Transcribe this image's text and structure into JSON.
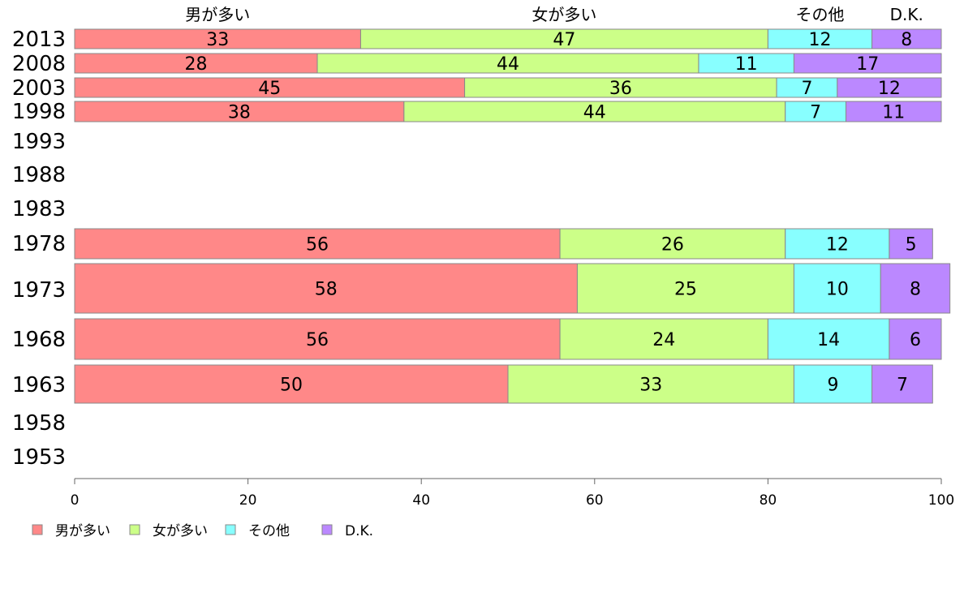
{
  "chart_data": {
    "type": "bar",
    "orientation": "horizontal",
    "stacked": true,
    "series": [
      {
        "name": "男が多い",
        "color": "#ff8888"
      },
      {
        "name": "女が多い",
        "color": "#ccff88"
      },
      {
        "name": "その他",
        "color": "#88ffff"
      },
      {
        "name": "D.K.",
        "color": "#bb88ff"
      }
    ],
    "categories": [
      "2013",
      "2008",
      "2003",
      "1998",
      "1993",
      "1988",
      "1983",
      "1978",
      "1973",
      "1968",
      "1963",
      "1958",
      "1953"
    ],
    "rows": [
      {
        "year": "2013",
        "values": [
          33,
          47,
          12,
          8
        ],
        "seg_labels": [
          "33",
          "47",
          "12",
          "8"
        ]
      },
      {
        "year": "2008",
        "values": [
          28,
          44,
          11,
          17
        ],
        "seg_labels": [
          "28",
          "44",
          "11",
          "17"
        ]
      },
      {
        "year": "2003",
        "values": [
          45,
          36,
          7,
          12
        ],
        "seg_labels": [
          "45",
          "36",
          "7",
          "12"
        ]
      },
      {
        "year": "1998",
        "values": [
          38,
          44,
          7,
          11
        ],
        "seg_labels": [
          "38",
          "44",
          "7",
          "11"
        ]
      },
      {
        "year": "1993",
        "values": null
      },
      {
        "year": "1988",
        "values": null
      },
      {
        "year": "1983",
        "values": null
      },
      {
        "year": "1978",
        "values": [
          56,
          26,
          12,
          5
        ],
        "seg_labels": [
          "56",
          "26",
          "12",
          "5"
        ]
      },
      {
        "year": "1973",
        "values": [
          58,
          25,
          10,
          8
        ],
        "seg_labels": [
          "58",
          "25",
          "10",
          "8"
        ]
      },
      {
        "year": "1968",
        "values": [
          56,
          24,
          14,
          6
        ],
        "seg_labels": [
          "56",
          "24",
          "14",
          "6"
        ]
      },
      {
        "year": "1963",
        "values": [
          50,
          33,
          9,
          7
        ],
        "seg_labels": [
          "50",
          "33",
          "9",
          "7"
        ]
      },
      {
        "year": "1958",
        "values": null
      },
      {
        "year": "1953",
        "values": null
      }
    ],
    "xlim": [
      0,
      100
    ],
    "xticks": [
      "0",
      "20",
      "40",
      "60",
      "80",
      "100"
    ],
    "top_labels": [
      "男が多い",
      "女が多い",
      "その他",
      "D.K."
    ],
    "legend": [
      "男が多い",
      "女が多い",
      "その他",
      "D.K."
    ],
    "legend_position": "bottom-left",
    "grid": false
  }
}
